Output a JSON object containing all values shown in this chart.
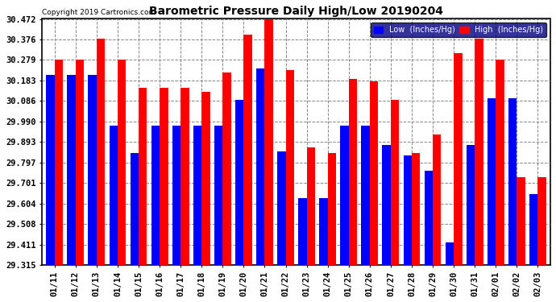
{
  "title": "Barometric Pressure Daily High/Low 20190204",
  "copyright": "Copyright 2019 Cartronics.com",
  "legend_low": "Low  (Inches/Hg)",
  "legend_high": "High  (Inches/Hg)",
  "dates": [
    "01/11",
    "01/12",
    "01/13",
    "01/14",
    "01/15",
    "01/16",
    "01/17",
    "01/18",
    "01/19",
    "01/20",
    "01/21",
    "01/22",
    "01/23",
    "01/24",
    "01/25",
    "01/26",
    "01/27",
    "01/28",
    "01/29",
    "01/30",
    "01/31",
    "02/01",
    "02/02",
    "02/03"
  ],
  "low": [
    30.21,
    30.21,
    30.21,
    29.97,
    29.84,
    29.97,
    29.97,
    29.97,
    29.97,
    30.09,
    30.24,
    29.85,
    29.63,
    29.63,
    29.97,
    29.97,
    29.88,
    29.83,
    29.76,
    29.42,
    29.88,
    30.1,
    30.1,
    29.65
  ],
  "high": [
    30.28,
    30.28,
    30.38,
    30.28,
    30.15,
    30.15,
    30.15,
    30.13,
    30.22,
    30.4,
    30.47,
    30.23,
    29.87,
    29.84,
    30.19,
    30.18,
    30.09,
    29.84,
    29.93,
    30.31,
    30.38,
    30.28,
    29.73,
    29.73
  ],
  "ymin": 29.315,
  "ymax": 30.472,
  "yticks": [
    29.315,
    29.411,
    29.508,
    29.604,
    29.701,
    29.797,
    29.893,
    29.99,
    30.086,
    30.183,
    30.279,
    30.376,
    30.472
  ],
  "low_color": "#0000ff",
  "high_color": "#ff0000",
  "bg_color": "#ffffff",
  "grid_color": "#888888",
  "title_color": "#000000",
  "bar_width": 0.4
}
